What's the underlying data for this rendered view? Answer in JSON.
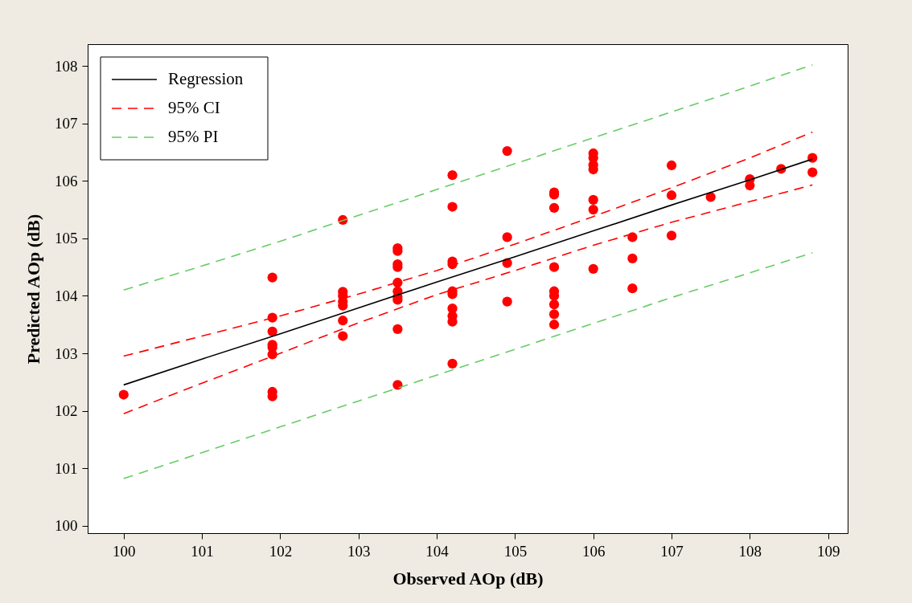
{
  "chart_data": {
    "type": "scatter",
    "xlabel": "Observed AOp (dB)",
    "ylabel": "Predicted AOp (dB)",
    "xlim": [
      99.54,
      109.25
    ],
    "ylim": [
      99.87,
      108.38
    ],
    "xticks": [
      100,
      101,
      102,
      103,
      104,
      105,
      106,
      107,
      108,
      109
    ],
    "yticks": [
      100,
      101,
      102,
      103,
      104,
      105,
      106,
      107,
      108
    ],
    "grid": false,
    "legend": "top left",
    "series": [
      {
        "color": "#ff0000",
        "marker": "circle",
        "x": [
          100,
          101.9,
          101.9,
          101.9,
          101.9,
          101.9,
          101.9,
          101.9,
          101.9,
          102.8,
          102.8,
          102.8,
          102.8,
          102.8,
          102.8,
          102.8,
          103.5,
          103.5,
          103.5,
          103.5,
          103.5,
          103.5,
          103.5,
          103.5,
          103.5,
          103.5,
          104.2,
          104.2,
          104.2,
          104.2,
          104.2,
          104.2,
          104.2,
          104.2,
          104.2,
          104.2,
          104.9,
          104.9,
          104.9,
          104.9,
          105.5,
          105.5,
          105.5,
          105.5,
          105.5,
          105.5,
          105.5,
          105.5,
          105.5,
          106,
          106,
          106,
          106,
          106,
          106,
          106,
          106.5,
          106.5,
          106.5,
          107,
          107,
          107,
          107.5,
          108,
          108,
          108.4,
          108.8,
          108.8
        ],
        "values": [
          102.28,
          104.32,
          103.62,
          103.38,
          103.15,
          103.1,
          102.98,
          102.33,
          102.25,
          105.32,
          104.07,
          104.0,
          103.9,
          103.83,
          103.57,
          103.3,
          104.83,
          104.78,
          104.55,
          104.5,
          104.23,
          104.08,
          103.98,
          103.93,
          103.42,
          102.45,
          106.1,
          105.55,
          104.6,
          104.55,
          104.08,
          104.03,
          103.78,
          103.65,
          103.55,
          102.82,
          106.52,
          105.02,
          104.57,
          103.9,
          105.8,
          105.76,
          105.53,
          104.5,
          104.08,
          104.0,
          103.85,
          103.68,
          103.5,
          106.48,
          106.4,
          106.28,
          106.2,
          105.67,
          105.5,
          104.47,
          105.02,
          104.65,
          104.13,
          106.27,
          105.75,
          105.05,
          105.72,
          106.03,
          105.92,
          106.21,
          106.4,
          106.15
        ]
      },
      {
        "type": "line",
        "name": "Regression",
        "color": "#000000",
        "line_style": "solid",
        "x": [
          100,
          101,
          102,
          103,
          104,
          105,
          106,
          107,
          108,
          108.8
        ],
        "values": [
          102.45,
          102.9,
          103.34,
          103.79,
          104.24,
          104.68,
          105.13,
          105.58,
          106.02,
          106.38
        ]
      },
      {
        "type": "line",
        "name": "95% CI",
        "color": "#ff0000",
        "line_style": "dashed",
        "x": [
          100,
          101,
          102,
          103,
          104,
          105,
          106,
          107,
          108,
          108.8
        ],
        "values": [
          102.95,
          103.3,
          103.65,
          104.03,
          104.44,
          104.9,
          105.38,
          105.88,
          106.4,
          106.85
        ]
      },
      {
        "type": "line",
        "color": "#ff0000",
        "line_style": "dashed",
        "x": [
          100,
          101,
          102,
          103,
          104,
          105,
          106,
          107,
          108,
          108.8
        ],
        "values": [
          101.95,
          102.48,
          103.0,
          103.53,
          104.02,
          104.44,
          104.88,
          105.28,
          105.64,
          105.93
        ]
      },
      {
        "type": "line",
        "name": "95% PI",
        "color": "#66cc66",
        "line_style": "dashed",
        "x": [
          100,
          101,
          102,
          103,
          104,
          105,
          106,
          107,
          108,
          108.8
        ],
        "values": [
          104.1,
          104.52,
          104.95,
          105.4,
          105.85,
          106.3,
          106.75,
          107.2,
          107.65,
          108.02
        ]
      },
      {
        "type": "line",
        "color": "#66cc66",
        "line_style": "dashed",
        "x": [
          100,
          101,
          102,
          103,
          104,
          105,
          106,
          107,
          108,
          108.8
        ],
        "values": [
          100.82,
          101.27,
          101.72,
          102.17,
          102.62,
          103.07,
          103.52,
          103.97,
          104.4,
          104.75
        ]
      }
    ]
  }
}
